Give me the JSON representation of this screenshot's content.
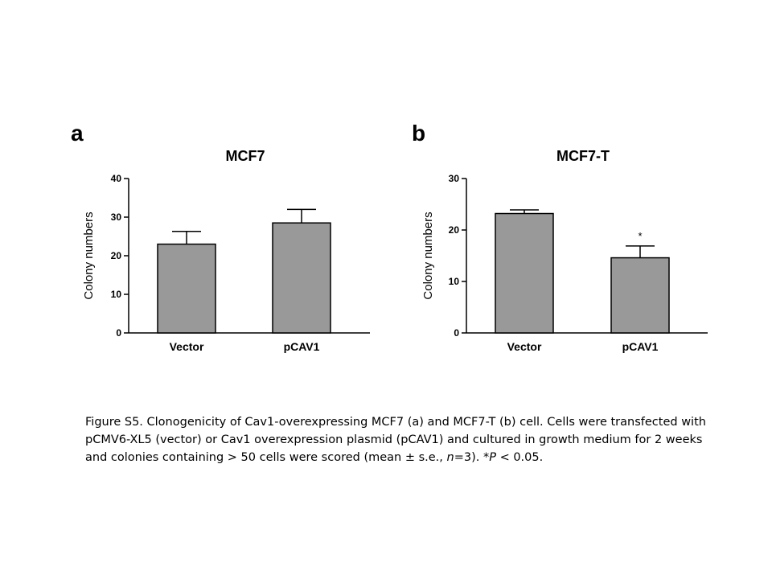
{
  "chart_data": [
    {
      "type": "bar",
      "panel": "a",
      "title": "MCF7",
      "xlabel": "",
      "ylabel": "Colony numbers",
      "ylim": [
        0,
        40
      ],
      "yticks": [
        0,
        10,
        20,
        30,
        40
      ],
      "categories": [
        "Vector",
        "pCAV1"
      ],
      "values": [
        23,
        28.5
      ],
      "errors": [
        3.3,
        3.5
      ],
      "significance": [
        "",
        ""
      ],
      "bar_color": "#999999"
    },
    {
      "type": "bar",
      "panel": "b",
      "title": "MCF7-T",
      "xlabel": "",
      "ylabel": "Colony numbers",
      "ylim": [
        0,
        30
      ],
      "yticks": [
        0,
        10,
        20,
        30
      ],
      "categories": [
        "Vector",
        "pCAV1"
      ],
      "values": [
        23.2,
        14.6
      ],
      "errors": [
        0.7,
        2.3
      ],
      "significance": [
        "",
        "*"
      ],
      "bar_color": "#999999"
    }
  ],
  "caption": {
    "part1": "Figure S5. Clonogenicity of Cav1-overexpressing MCF7 (a) and MCF7-T (b) cell. Cells were transfected with pCMV6-XL5 (vector) or Cav1 overexpression plasmid (pCAV1) and cultured in growth medium for 2 weeks and colonies containing > 50 cells were scored (mean ± s.e., ",
    "n_italic": "n",
    "part2": "=3). *",
    "p_italic": "P",
    "part3": " < 0.05."
  }
}
